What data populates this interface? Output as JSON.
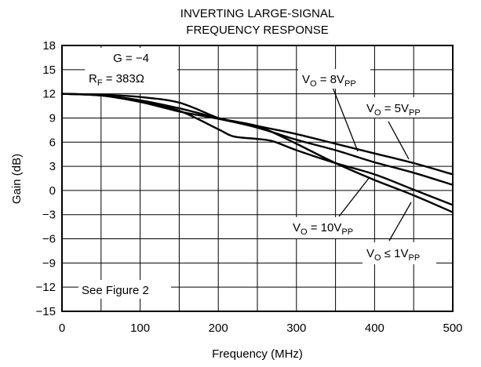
{
  "chart_data": {
    "type": "line",
    "title_lines": [
      "INVERTING LARGE-SIGNAL",
      "FREQUENCY RESPONSE"
    ],
    "xlabel": "Frequency (MHz)",
    "ylabel": "Gain (dB)",
    "xlim": [
      0,
      500
    ],
    "ylim": [
      -15,
      18
    ],
    "xticks": [
      0,
      100,
      200,
      300,
      400,
      500
    ],
    "yticks": [
      18,
      15,
      12,
      9,
      6,
      3,
      0,
      -3,
      -6,
      -9,
      -12,
      -15
    ],
    "ytick_labels": [
      "18",
      "15",
      "12",
      "9",
      "6",
      "3",
      "0",
      "−3",
      "−6",
      "−9",
      "−12",
      "−15"
    ],
    "xgrid": [
      0,
      50,
      100,
      150,
      200,
      250,
      300,
      350,
      400,
      450,
      500
    ],
    "ygrid": [
      18,
      15,
      12,
      9,
      6,
      3,
      0,
      -3,
      -6,
      -9,
      -12,
      -15
    ],
    "series": [
      {
        "name": "VO = 8VPP",
        "x": [
          0,
          50,
          100,
          150,
          200,
          250,
          300,
          350,
          400,
          450,
          500
        ],
        "y": [
          12,
          11.8,
          11.2,
          10.2,
          9.0,
          8.0,
          7.0,
          5.8,
          4.6,
          3.4,
          2.0
        ]
      },
      {
        "name": "VO = 5VPP",
        "x": [
          0,
          50,
          100,
          150,
          200,
          250,
          300,
          350,
          400,
          450,
          500
        ],
        "y": [
          12,
          11.8,
          11.0,
          9.8,
          8.9,
          7.8,
          6.3,
          5.0,
          3.5,
          2.2,
          0.7
        ]
      },
      {
        "name": "VO = 10VPP",
        "x": [
          0,
          50,
          100,
          150,
          200,
          220,
          250,
          270,
          300,
          350,
          400,
          450,
          500
        ],
        "y": [
          12,
          11.9,
          11.6,
          10.9,
          9.0,
          8.6,
          8.0,
          7.2,
          5.8,
          3.4,
          1.3,
          -0.6,
          -2.7
        ]
      },
      {
        "name": "VO ≤ 1VPP",
        "x": [
          0,
          50,
          100,
          150,
          200,
          220,
          250,
          270,
          300,
          350,
          400,
          450,
          500
        ],
        "y": [
          12,
          11.8,
          11.0,
          9.9,
          7.6,
          6.7,
          6.4,
          6.1,
          5.0,
          3.4,
          2.0,
          0.1,
          -1.8
        ]
      }
    ],
    "annotations": {
      "gain": "G = −4",
      "rf_main": "R",
      "rf_sub": "F",
      "rf_tail": " = 383Ω",
      "see_figure": "See Figure 2",
      "vo8_main": "V",
      "vo8_sub1": "O",
      "vo8_mid": " = 8V",
      "vo8_sub2": "PP",
      "vo5_main": "V",
      "vo5_sub1": "O",
      "vo5_mid": " = 5V",
      "vo5_sub2": "PP",
      "vo10_main": "V",
      "vo10_sub1": "O",
      "vo10_mid": " = 10V",
      "vo10_sub2": "PP",
      "vo1_main": "V",
      "vo1_sub1": "O",
      "vo1_mid": " ≤ 1V",
      "vo1_sub2": "PP"
    },
    "grid": true,
    "legend": "none"
  }
}
